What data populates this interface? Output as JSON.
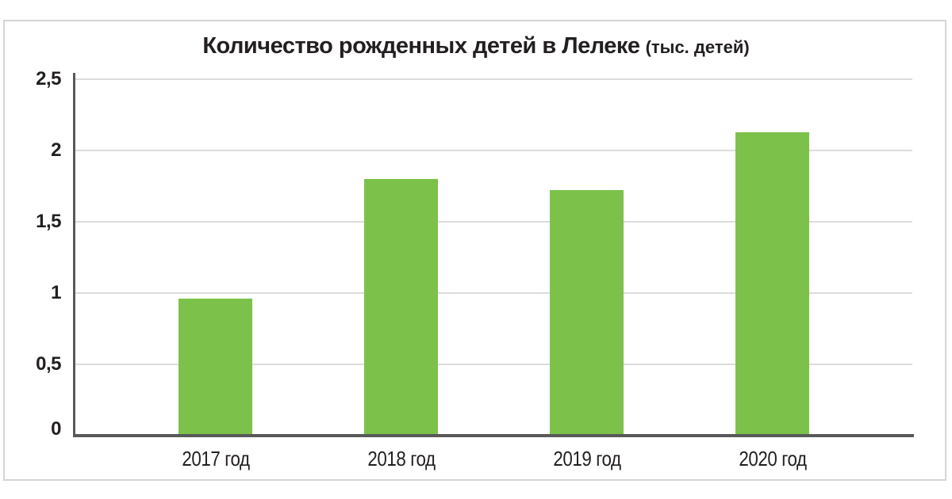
{
  "window": {
    "background_color": "#ffffff",
    "frame_border_color": "#d5d5d5"
  },
  "chart_data": {
    "type": "bar",
    "title": "Количество рожденных детей в Лелеке",
    "title_suffix": "(тыс. детей)",
    "categories": [
      "2017 год",
      "2018 год",
      "2019 год",
      "2020 год"
    ],
    "values": [
      0.96,
      1.8,
      1.72,
      2.13
    ],
    "xlabel": "",
    "ylabel": "",
    "ylim": [
      0,
      2.5
    ],
    "ytick_values": [
      0,
      0.5,
      1,
      1.5,
      2,
      2.5
    ],
    "ytick_labels": [
      "0",
      "0,5",
      "1",
      "1,5",
      "2",
      "2,5"
    ],
    "grid": true,
    "legend": false,
    "bar_color": "#7cc24a",
    "axis_color": "#58585a",
    "gridline_color": "#dcdcdc",
    "text_color": "#231f20"
  }
}
